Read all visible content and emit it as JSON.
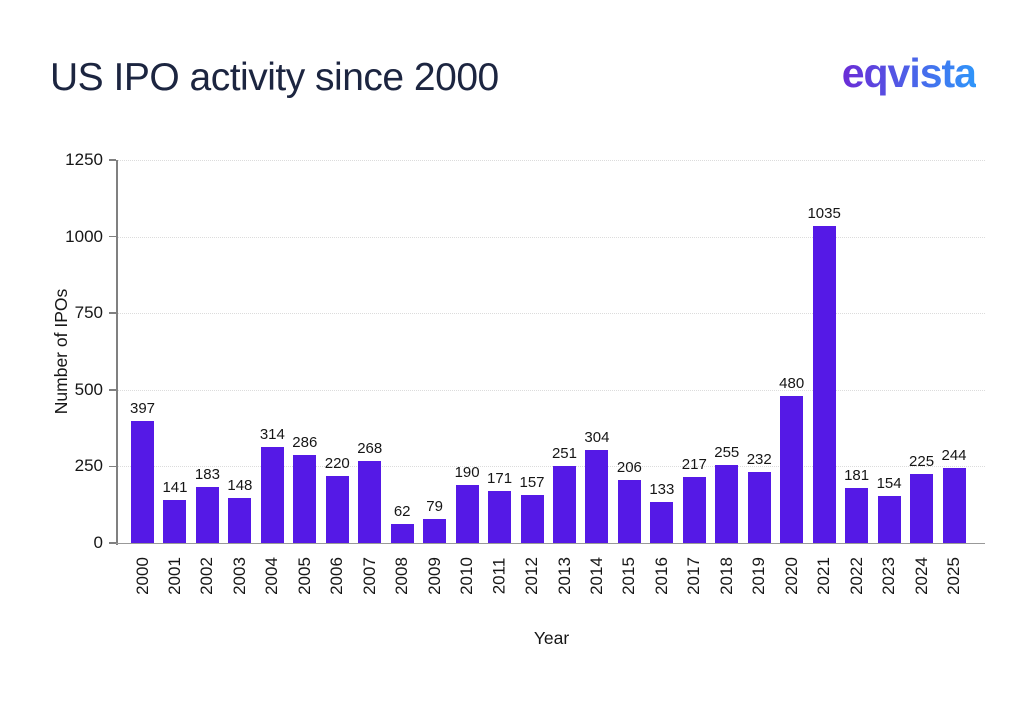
{
  "header": {
    "title": "US IPO activity since 2000",
    "logo_text": "eqvista"
  },
  "colors": {
    "bar": "#5519E6",
    "title_text": "#1C2540",
    "axis_text": "#161616",
    "axis_line": "#808080",
    "x_axis_line": "#999999",
    "gridline": "#DCDCDC",
    "logo_gradient_start": "#6B2BD6",
    "logo_gradient_end": "#2F96FA"
  },
  "chart_data": {
    "type": "bar",
    "title": "US IPO activity since 2000",
    "categories": [
      "2000",
      "2001",
      "2002",
      "2003",
      "2004",
      "2005",
      "2006",
      "2007",
      "2008",
      "2009",
      "2010",
      "2011",
      "2012",
      "2013",
      "2014",
      "2015",
      "2016",
      "2017",
      "2018",
      "2019",
      "2020",
      "2021",
      "2022",
      "2023",
      "2024",
      "2025"
    ],
    "values": [
      397,
      141,
      183,
      148,
      314,
      286,
      220,
      268,
      62,
      79,
      190,
      171,
      157,
      251,
      304,
      206,
      133,
      217,
      255,
      232,
      480,
      1035,
      181,
      154,
      225,
      244
    ],
    "xlabel": "Year",
    "ylabel": "Number of IPOs",
    "ylim": [
      0,
      1250
    ],
    "yticks": [
      0,
      250,
      500,
      750,
      1000,
      1250
    ],
    "grid": "horizontal-dotted",
    "legend": "none",
    "bar_labels": true,
    "bar_color": "#5519E6"
  }
}
